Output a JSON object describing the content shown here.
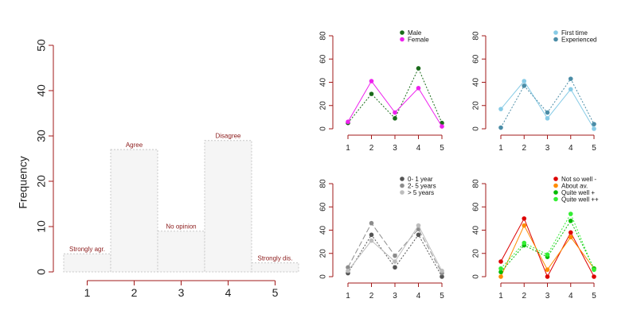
{
  "chart_data": [
    {
      "type": "bar",
      "ylabel": "Frequency",
      "xlabel": "",
      "categories": [
        "1",
        "2",
        "3",
        "4",
        "5"
      ],
      "values": [
        4,
        27,
        9,
        29,
        2
      ],
      "bar_labels": [
        "Strongly agr.",
        "Agree",
        "No opinion",
        "Disagree",
        "Strongly dis."
      ],
      "ylim": [
        0,
        50
      ],
      "yticks": [
        0,
        10,
        20,
        30,
        40,
        50
      ]
    },
    {
      "type": "line",
      "x": [
        1,
        2,
        3,
        4,
        5
      ],
      "ylim": [
        0,
        80
      ],
      "yticks": [
        0,
        20,
        40,
        60,
        80
      ],
      "legend_position": "top-right",
      "series": [
        {
          "name": "Male",
          "values": [
            5,
            30,
            9,
            52,
            5
          ],
          "color": "#1a6b1a",
          "dash": "2 2"
        },
        {
          "name": "Female",
          "values": [
            6,
            41,
            14,
            35,
            2
          ],
          "color": "#ee22ee",
          "dash": ""
        }
      ]
    },
    {
      "type": "line",
      "x": [
        1,
        2,
        3,
        4,
        5
      ],
      "ylim": [
        0,
        80
      ],
      "yticks": [
        0,
        20,
        40,
        60,
        80
      ],
      "legend_position": "top-right",
      "series": [
        {
          "name": "First time",
          "values": [
            17,
            41,
            9,
            34,
            0
          ],
          "color": "#87cbe6",
          "dash": ""
        },
        {
          "name": "Experienced",
          "values": [
            1,
            37,
            14,
            43,
            4
          ],
          "color": "#4a8ca6",
          "dash": "2 2"
        }
      ]
    },
    {
      "type": "line",
      "x": [
        1,
        2,
        3,
        4,
        5
      ],
      "ylim": [
        0,
        80
      ],
      "yticks": [
        0,
        20,
        40,
        60,
        80
      ],
      "legend_position": "top-right",
      "series": [
        {
          "name": "0- 1 year",
          "values": [
            3,
            36,
            8,
            36,
            0
          ],
          "color": "#555555",
          "dash": "2 2"
        },
        {
          "name": "2- 5 years",
          "values": [
            8,
            46,
            18,
            41,
            3
          ],
          "color": "#8c8c8c",
          "dash": "7 3"
        },
        {
          "name": "> 5 years",
          "values": [
            5,
            31,
            13,
            44,
            5
          ],
          "color": "#bdbdbd",
          "dash": ""
        }
      ]
    },
    {
      "type": "line",
      "x": [
        1,
        2,
        3,
        4,
        5
      ],
      "ylim": [
        0,
        80
      ],
      "yticks": [
        0,
        20,
        40,
        60,
        80
      ],
      "legend_position": "top-right",
      "series": [
        {
          "name": "Not so well -",
          "values": [
            13,
            50,
            0,
            38,
            0
          ],
          "color": "#dd0000",
          "dash": ""
        },
        {
          "name": "About av.",
          "values": [
            0,
            44,
            6,
            34,
            7
          ],
          "color": "#ff8c00",
          "dash": ""
        },
        {
          "name": "Quite well +",
          "values": [
            4,
            27,
            17,
            48,
            7
          ],
          "color": "#00bb00",
          "dash": "2 2"
        },
        {
          "name": "Quite well ++",
          "values": [
            7,
            29,
            19,
            54,
            6
          ],
          "color": "#33ee33",
          "dash": "2 2"
        }
      ]
    }
  ]
}
